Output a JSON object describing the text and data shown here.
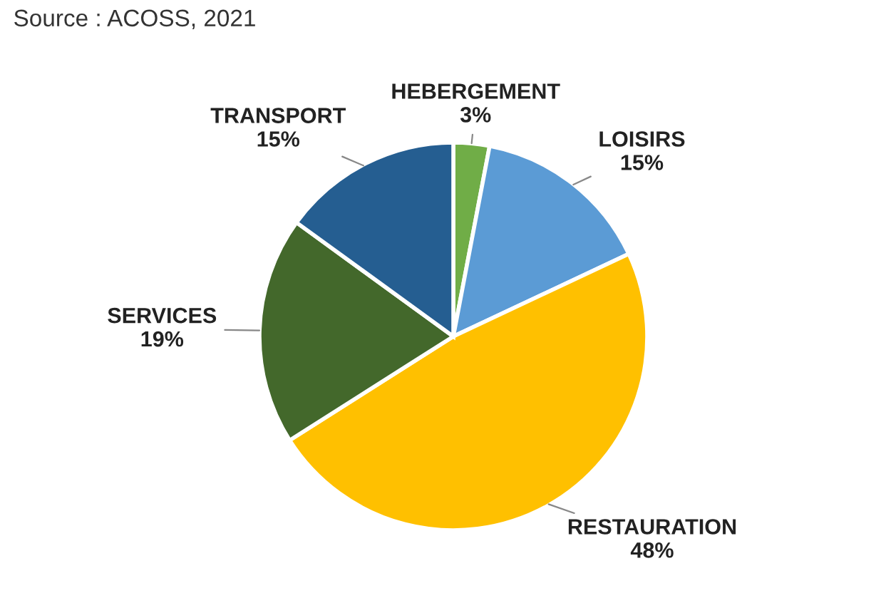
{
  "chart_data": {
    "type": "pie",
    "categories": [
      "HEBERGEMENT",
      "LOISIRS",
      "RESTAURATION",
      "SERVICES",
      "TRANSPORT"
    ],
    "values": [
      3,
      15,
      48,
      19,
      15
    ],
    "value_labels": [
      "3%",
      "15%",
      "48%",
      "19%",
      "15%"
    ],
    "colors": [
      "#70ad47",
      "#5b9bd5",
      "#ffc000",
      "#43682b",
      "#255e91"
    ],
    "annotations": [
      "Source : ACOSS, 2021"
    ]
  }
}
